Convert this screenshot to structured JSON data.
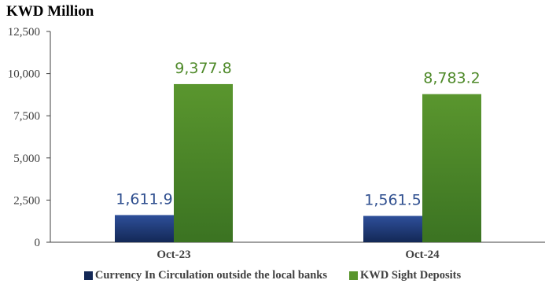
{
  "colors": {
    "series1_top": "#2e4f9a",
    "series1_bottom": "#132856",
    "series2_top": "#5a962e",
    "series2_bottom": "#3b7322",
    "series1_label": "#2f4f8f",
    "series2_label": "#4f8a2a"
  },
  "chart_data": {
    "type": "bar",
    "title": "",
    "ylabel": "KWD Million",
    "xlabel": "",
    "categories": [
      "Oct-23",
      "Oct-24"
    ],
    "series": [
      {
        "name": "Currency In Circulation outside the local banks",
        "values": [
          1611.9,
          1561.5
        ],
        "labels": [
          "1,611.9",
          "1,561.5"
        ]
      },
      {
        "name": "KWD Sight Deposits",
        "values": [
          9377.8,
          8783.2
        ],
        "labels": [
          "9,377.8",
          "8,783.2"
        ]
      }
    ],
    "ylim": [
      0,
      12500
    ],
    "yticks": [
      0,
      2500,
      5000,
      7500,
      10000,
      12500
    ],
    "ytick_labels": [
      "0",
      "2,500",
      "5,000",
      "7,500",
      "10,000",
      "12,500"
    ],
    "grid": false,
    "legend_position": "bottom"
  }
}
